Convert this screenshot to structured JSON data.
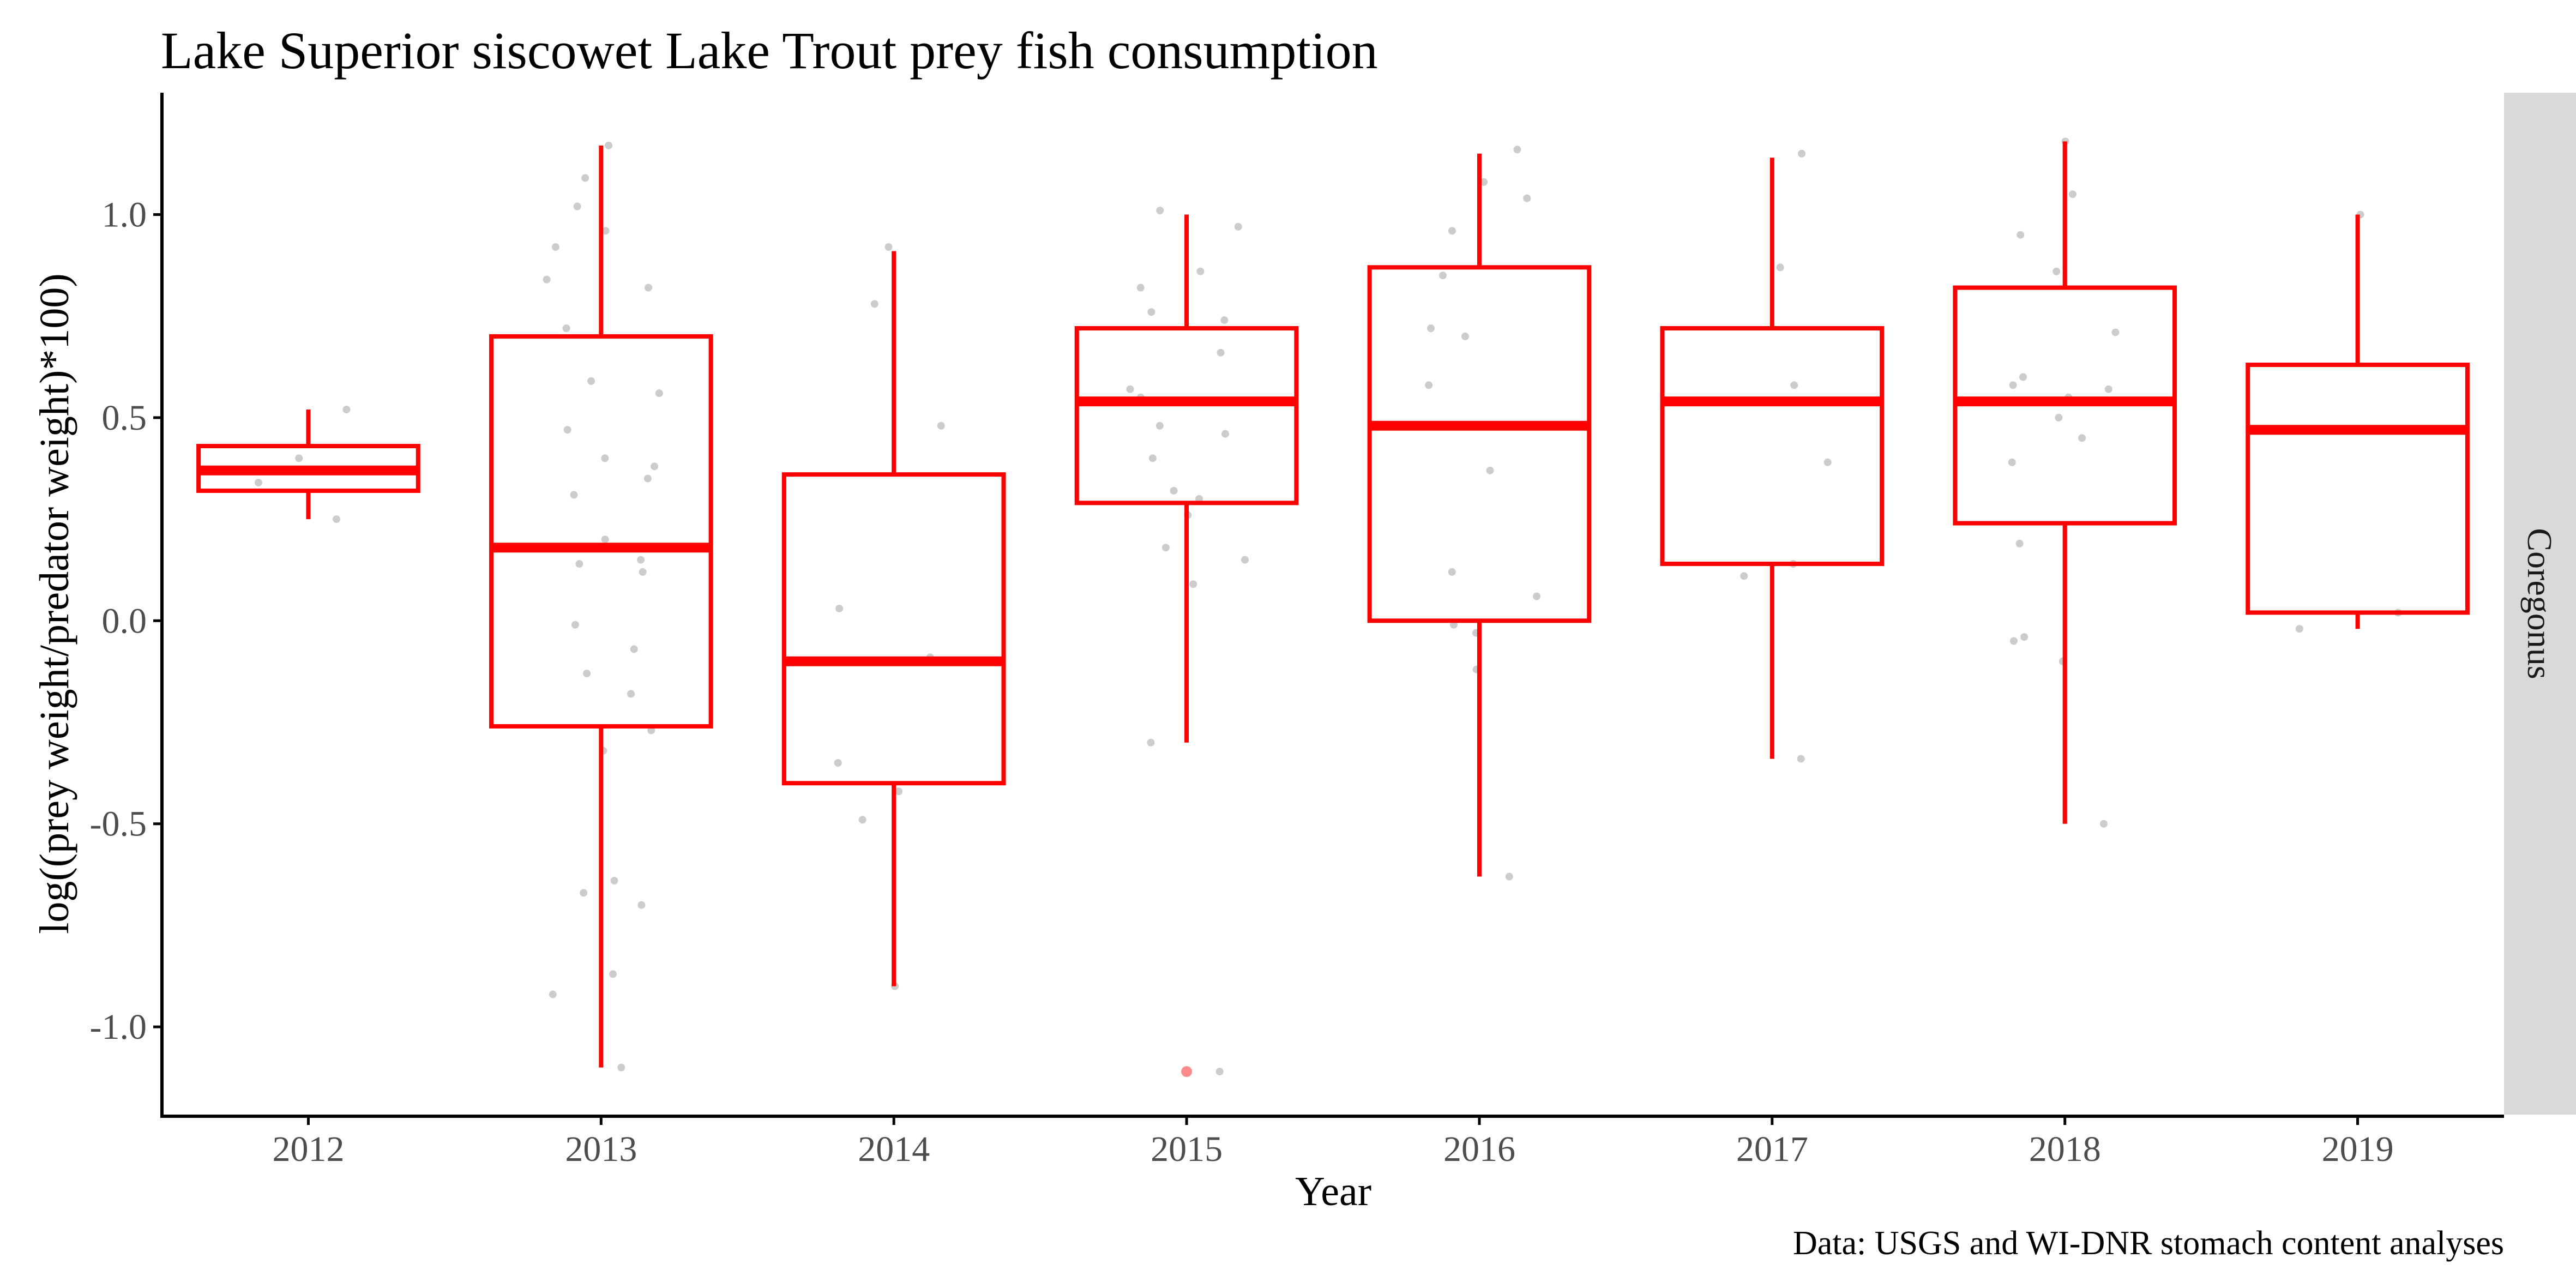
{
  "chart_data": {
    "type": "boxplot",
    "title": "Lake Superior siscowet Lake Trout prey fish consumption",
    "xlabel": "Year",
    "ylabel": "log((prey weight/predator weight)*100)",
    "caption": "Data: USGS and WI-DNR stomach content analyses",
    "facet_label": "Coregonus",
    "ylim": [
      -1.22,
      1.3
    ],
    "yticks": [
      {
        "value": -1.0,
        "label": "-1.0"
      },
      {
        "value": -0.5,
        "label": "-0.5"
      },
      {
        "value": 0.0,
        "label": "0.0"
      },
      {
        "value": 0.5,
        "label": "0.5"
      },
      {
        "value": 1.0,
        "label": "1.0"
      }
    ],
    "grid": false,
    "colors": {
      "box": "#ff0000",
      "points": "#bfbfbf",
      "outlier": "#ff0000",
      "strip": "#d9d9d9",
      "text": "#000000",
      "tick_text": "#4d4d4d"
    },
    "categories": [
      "2012",
      "2013",
      "2014",
      "2015",
      "2016",
      "2017",
      "2018",
      "2019"
    ],
    "boxes": [
      {
        "year": "2012",
        "whisker_low": 0.25,
        "q1": 0.32,
        "median": 0.37,
        "q3": 0.43,
        "whisker_high": 0.52,
        "outliers": [],
        "points": [
          0.25,
          0.34,
          0.4,
          0.52
        ]
      },
      {
        "year": "2013",
        "whisker_low": -1.1,
        "q1": -0.26,
        "median": 0.18,
        "q3": 0.7,
        "whisker_high": 1.17,
        "outliers": [],
        "points": [
          1.17,
          1.09,
          1.02,
          0.96,
          0.92,
          0.84,
          0.82,
          0.72,
          0.59,
          0.56,
          0.47,
          0.4,
          0.38,
          0.35,
          0.31,
          0.2,
          0.15,
          0.14,
          0.12,
          -0.01,
          -0.07,
          -0.13,
          -0.18,
          -0.27,
          -0.32,
          -0.64,
          -0.67,
          -0.7,
          -0.87,
          -0.92,
          -1.1
        ]
      },
      {
        "year": "2014",
        "whisker_low": -0.9,
        "q1": -0.4,
        "median": -0.1,
        "q3": 0.36,
        "whisker_high": 0.91,
        "outliers": [],
        "points": [
          0.92,
          0.78,
          0.48,
          0.03,
          -0.09,
          -0.35,
          -0.42,
          -0.49,
          -0.9
        ]
      },
      {
        "year": "2015",
        "whisker_low": -0.3,
        "q1": 0.29,
        "median": 0.54,
        "q3": 0.72,
        "whisker_high": 1.0,
        "outliers": [
          -1.11
        ],
        "points": [
          1.01,
          0.97,
          0.86,
          0.82,
          0.76,
          0.74,
          0.66,
          0.57,
          0.55,
          0.48,
          0.46,
          0.4,
          0.32,
          0.3,
          0.26,
          0.18,
          0.15,
          0.09,
          -0.3,
          -1.11
        ]
      },
      {
        "year": "2016",
        "whisker_low": -0.63,
        "q1": 0.0,
        "median": 0.48,
        "q3": 0.87,
        "whisker_high": 1.15,
        "outliers": [],
        "points": [
          1.16,
          1.08,
          1.04,
          0.96,
          0.85,
          0.72,
          0.7,
          0.58,
          0.37,
          0.12,
          0.06,
          -0.01,
          -0.03,
          -0.12,
          -0.63
        ]
      },
      {
        "year": "2017",
        "whisker_low": -0.34,
        "q1": 0.14,
        "median": 0.54,
        "q3": 0.72,
        "whisker_high": 1.14,
        "outliers": [],
        "points": [
          1.15,
          0.87,
          0.58,
          0.39,
          0.14,
          0.11,
          -0.34
        ]
      },
      {
        "year": "2018",
        "whisker_low": -0.5,
        "q1": 0.24,
        "median": 0.54,
        "q3": 0.82,
        "whisker_high": 1.18,
        "outliers": [],
        "points": [
          1.18,
          1.05,
          0.95,
          0.86,
          0.71,
          0.6,
          0.58,
          0.57,
          0.55,
          0.5,
          0.45,
          0.39,
          0.19,
          -0.04,
          -0.05,
          -0.1,
          -0.5
        ]
      },
      {
        "year": "2019",
        "whisker_low": -0.02,
        "q1": 0.02,
        "median": 0.47,
        "q3": 0.63,
        "whisker_high": 1.0,
        "outliers": [],
        "points": [
          1.0,
          0.47,
          0.02,
          -0.02
        ]
      }
    ]
  }
}
